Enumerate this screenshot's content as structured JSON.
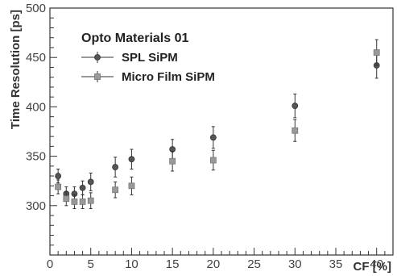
{
  "chart_data": {
    "type": "scatter",
    "title": "",
    "xlabel": "CF [%]",
    "ylabel": "Time Resolution [ps]",
    "xlim": [
      0,
      42
    ],
    "ylim": [
      250,
      500
    ],
    "x_ticks": [
      0,
      5,
      10,
      15,
      20,
      25,
      30,
      35,
      40
    ],
    "y_ticks": [
      300,
      350,
      400,
      450,
      500
    ],
    "grid": false,
    "legend": {
      "title": "Opto Materials 01",
      "placement": "top-left"
    },
    "series": [
      {
        "name": "SPL SiPM",
        "marker": "circle",
        "color": "#555555",
        "points": [
          {
            "x": 1,
            "y": 330,
            "err": 7
          },
          {
            "x": 2,
            "y": 312,
            "err": 7
          },
          {
            "x": 3,
            "y": 312,
            "err": 7
          },
          {
            "x": 4,
            "y": 318,
            "err": 7
          },
          {
            "x": 5,
            "y": 324,
            "err": 9
          },
          {
            "x": 8,
            "y": 339,
            "err": 10
          },
          {
            "x": 10,
            "y": 347,
            "err": 10
          },
          {
            "x": 15,
            "y": 357,
            "err": 10
          },
          {
            "x": 20,
            "y": 369,
            "err": 11
          },
          {
            "x": 30,
            "y": 401,
            "err": 12
          },
          {
            "x": 40,
            "y": 442,
            "err": 13
          }
        ]
      },
      {
        "name": "Micro Film SiPM",
        "marker": "square",
        "color": "#999999",
        "points": [
          {
            "x": 1,
            "y": 319,
            "err": 7
          },
          {
            "x": 2,
            "y": 307,
            "err": 7
          },
          {
            "x": 3,
            "y": 304,
            "err": 7
          },
          {
            "x": 4,
            "y": 304,
            "err": 7
          },
          {
            "x": 5,
            "y": 305,
            "err": 8
          },
          {
            "x": 8,
            "y": 316,
            "err": 8
          },
          {
            "x": 10,
            "y": 320,
            "err": 9
          },
          {
            "x": 15,
            "y": 345,
            "err": 10
          },
          {
            "x": 20,
            "y": 346,
            "err": 10
          },
          {
            "x": 30,
            "y": 376,
            "err": 11
          },
          {
            "x": 40,
            "y": 455,
            "err": 13
          }
        ]
      }
    ]
  }
}
